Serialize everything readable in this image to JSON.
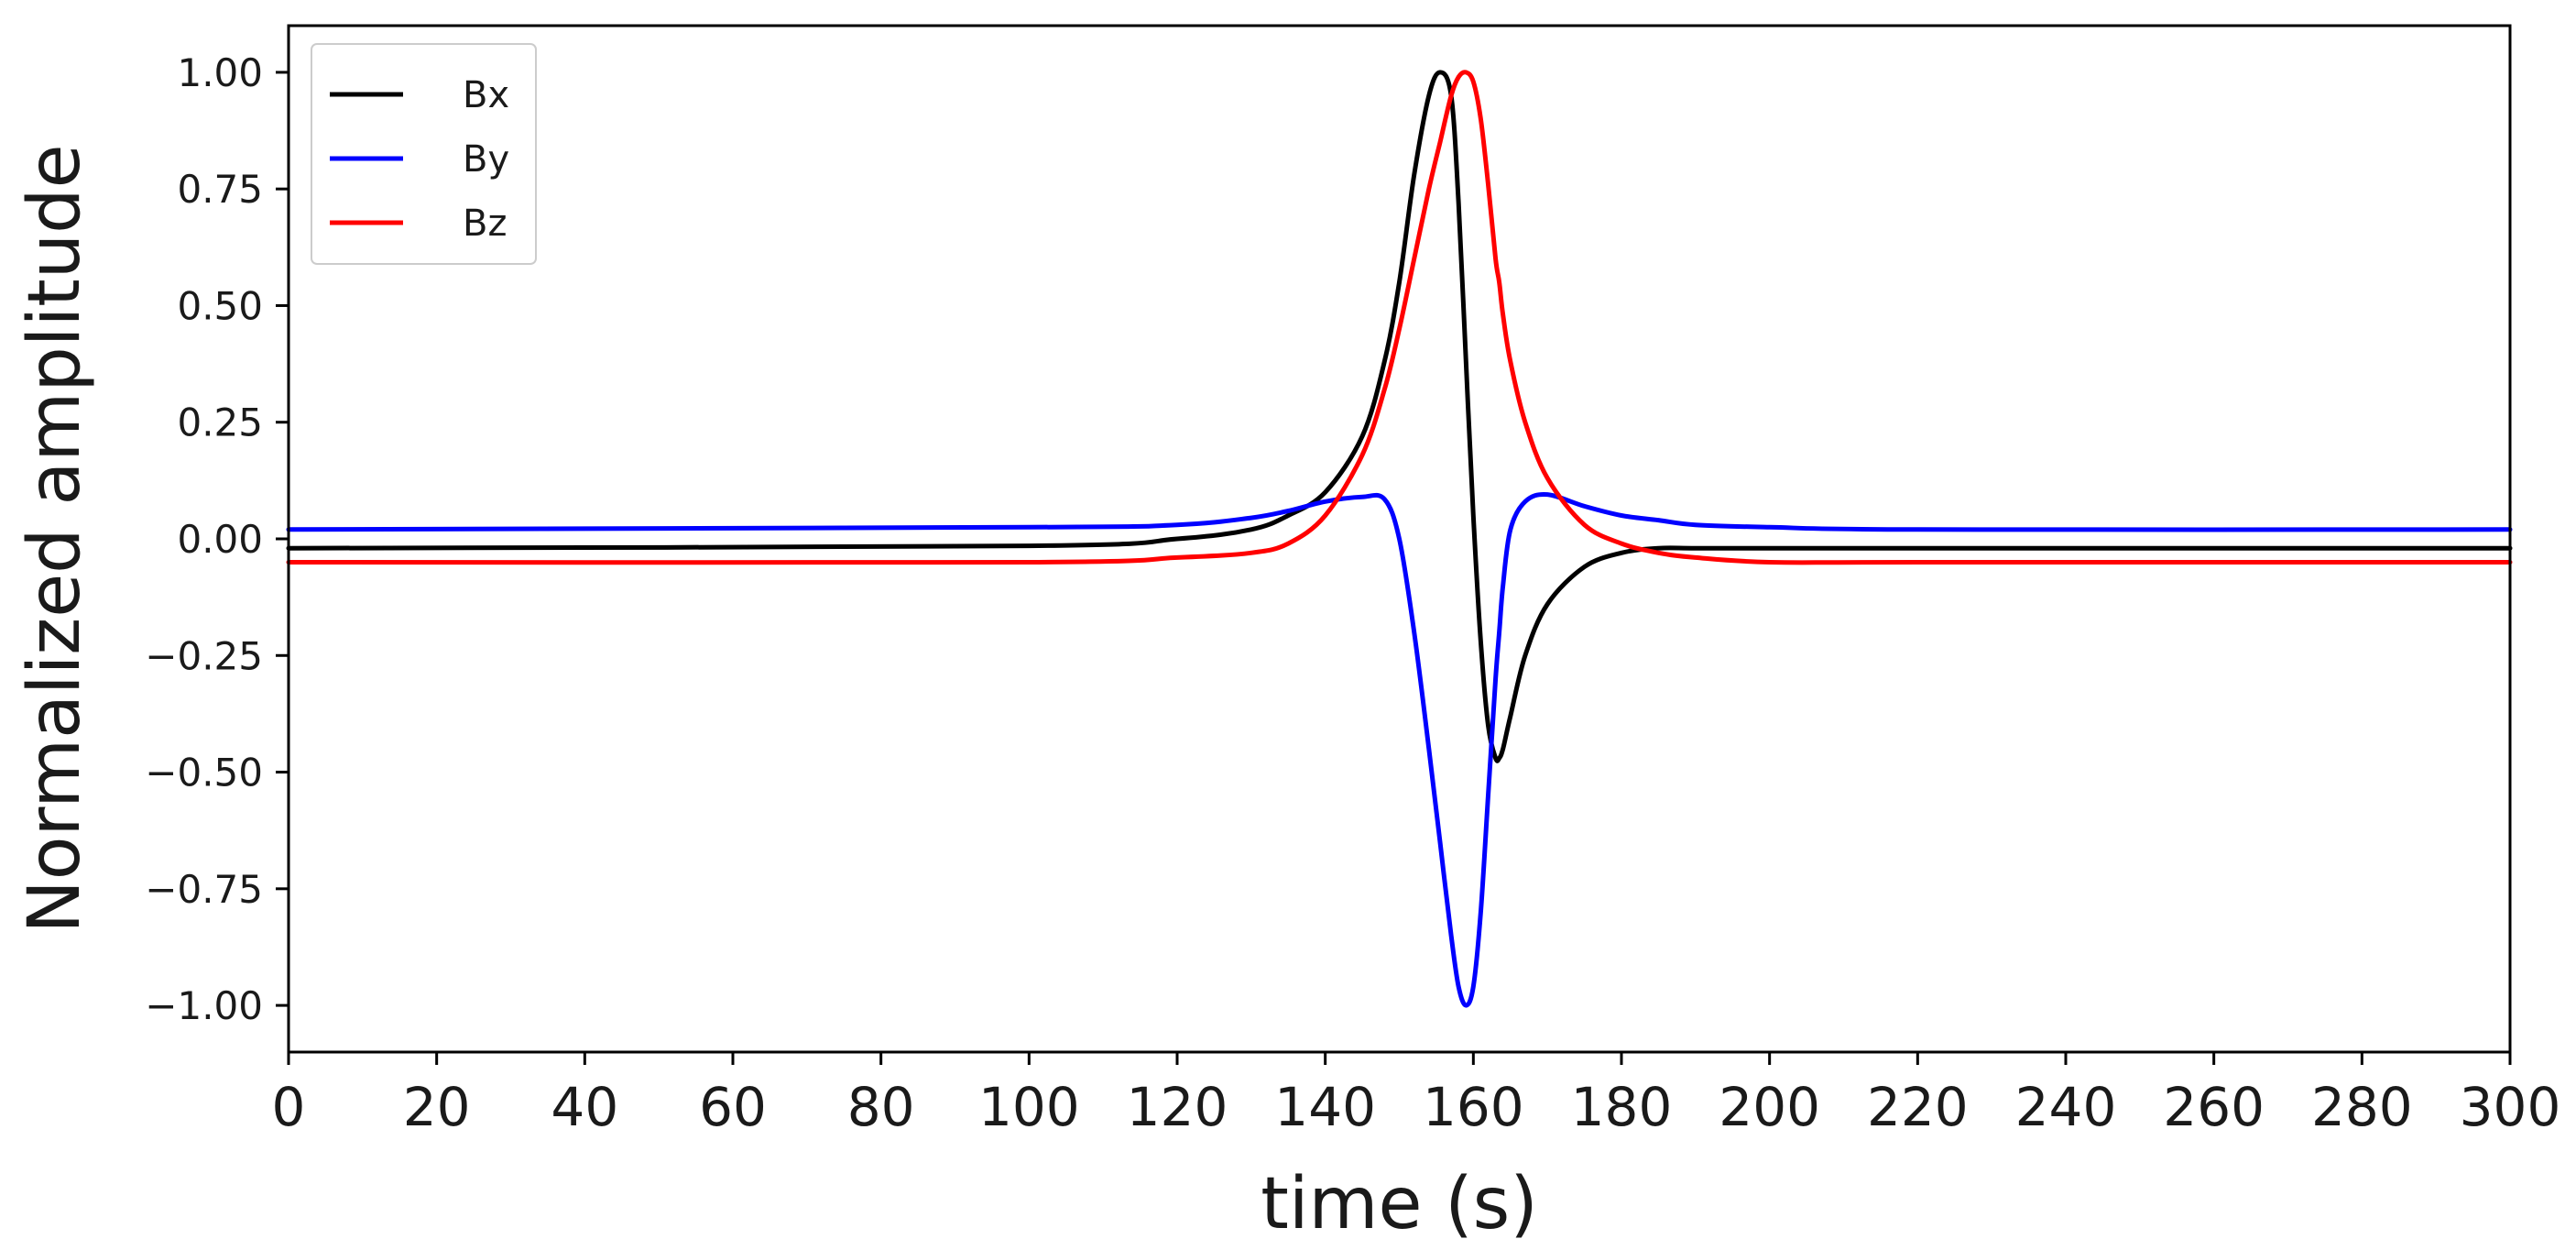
{
  "chart_data": {
    "type": "line",
    "title": "",
    "xlabel": "time (s)",
    "ylabel": "Normalized amplitude",
    "xlim": [
      0,
      300
    ],
    "ylim": [
      -1.1,
      1.1
    ],
    "grid": false,
    "legend_position": "top-left",
    "x_ticks": [
      0,
      20,
      40,
      60,
      80,
      100,
      120,
      140,
      160,
      180,
      200,
      220,
      240,
      260,
      280,
      300
    ],
    "x_tick_labels": [
      "0",
      "20",
      "40",
      "60",
      "80",
      "100",
      "120",
      "140",
      "160",
      "180",
      "200",
      "220",
      "240",
      "260",
      "280",
      "300"
    ],
    "y_ticks": [
      1.0,
      0.75,
      0.5,
      0.25,
      0.0,
      -0.25,
      -0.5,
      -0.75,
      -1.0
    ],
    "y_tick_labels": [
      "1.00",
      "0.75",
      "0.50",
      "0.25",
      "0.00",
      "−0.25",
      "−0.50",
      "−0.75",
      "−1.00"
    ],
    "x": [
      0,
      100,
      120,
      130,
      135,
      140,
      145,
      148,
      150,
      152,
      154,
      155.5,
      157,
      158,
      159,
      160,
      161,
      162,
      163,
      163.5,
      164,
      165,
      167,
      170,
      175,
      180,
      185,
      190,
      200,
      220,
      300
    ],
    "series": [
      {
        "name": "Bx",
        "color": "#000000",
        "values": [
          -0.02,
          -0.015,
          0.0,
          0.02,
          0.05,
          0.1,
          0.22,
          0.38,
          0.55,
          0.78,
          0.95,
          1.0,
          0.95,
          0.72,
          0.38,
          0.05,
          -0.22,
          -0.4,
          -0.47,
          -0.47,
          -0.45,
          -0.38,
          -0.25,
          -0.14,
          -0.06,
          -0.03,
          -0.02,
          -0.02,
          -0.02,
          -0.02,
          -0.02
        ]
      },
      {
        "name": "By",
        "color": "#0000ff",
        "values": [
          0.02,
          0.025,
          0.03,
          0.045,
          0.06,
          0.08,
          0.09,
          0.085,
          0.0,
          -0.2,
          -0.45,
          -0.65,
          -0.85,
          -0.96,
          -1.0,
          -0.96,
          -0.8,
          -0.55,
          -0.3,
          -0.2,
          -0.1,
          0.02,
          0.08,
          0.095,
          0.07,
          0.05,
          0.04,
          0.03,
          0.025,
          0.02,
          0.02
        ]
      },
      {
        "name": "Bz",
        "color": "#ff0000",
        "values": [
          -0.05,
          -0.05,
          -0.04,
          -0.03,
          -0.01,
          0.05,
          0.18,
          0.32,
          0.45,
          0.6,
          0.75,
          0.85,
          0.95,
          0.99,
          1.0,
          0.98,
          0.9,
          0.76,
          0.6,
          0.55,
          0.48,
          0.38,
          0.25,
          0.13,
          0.03,
          -0.01,
          -0.03,
          -0.04,
          -0.05,
          -0.05,
          -0.05
        ]
      }
    ]
  }
}
